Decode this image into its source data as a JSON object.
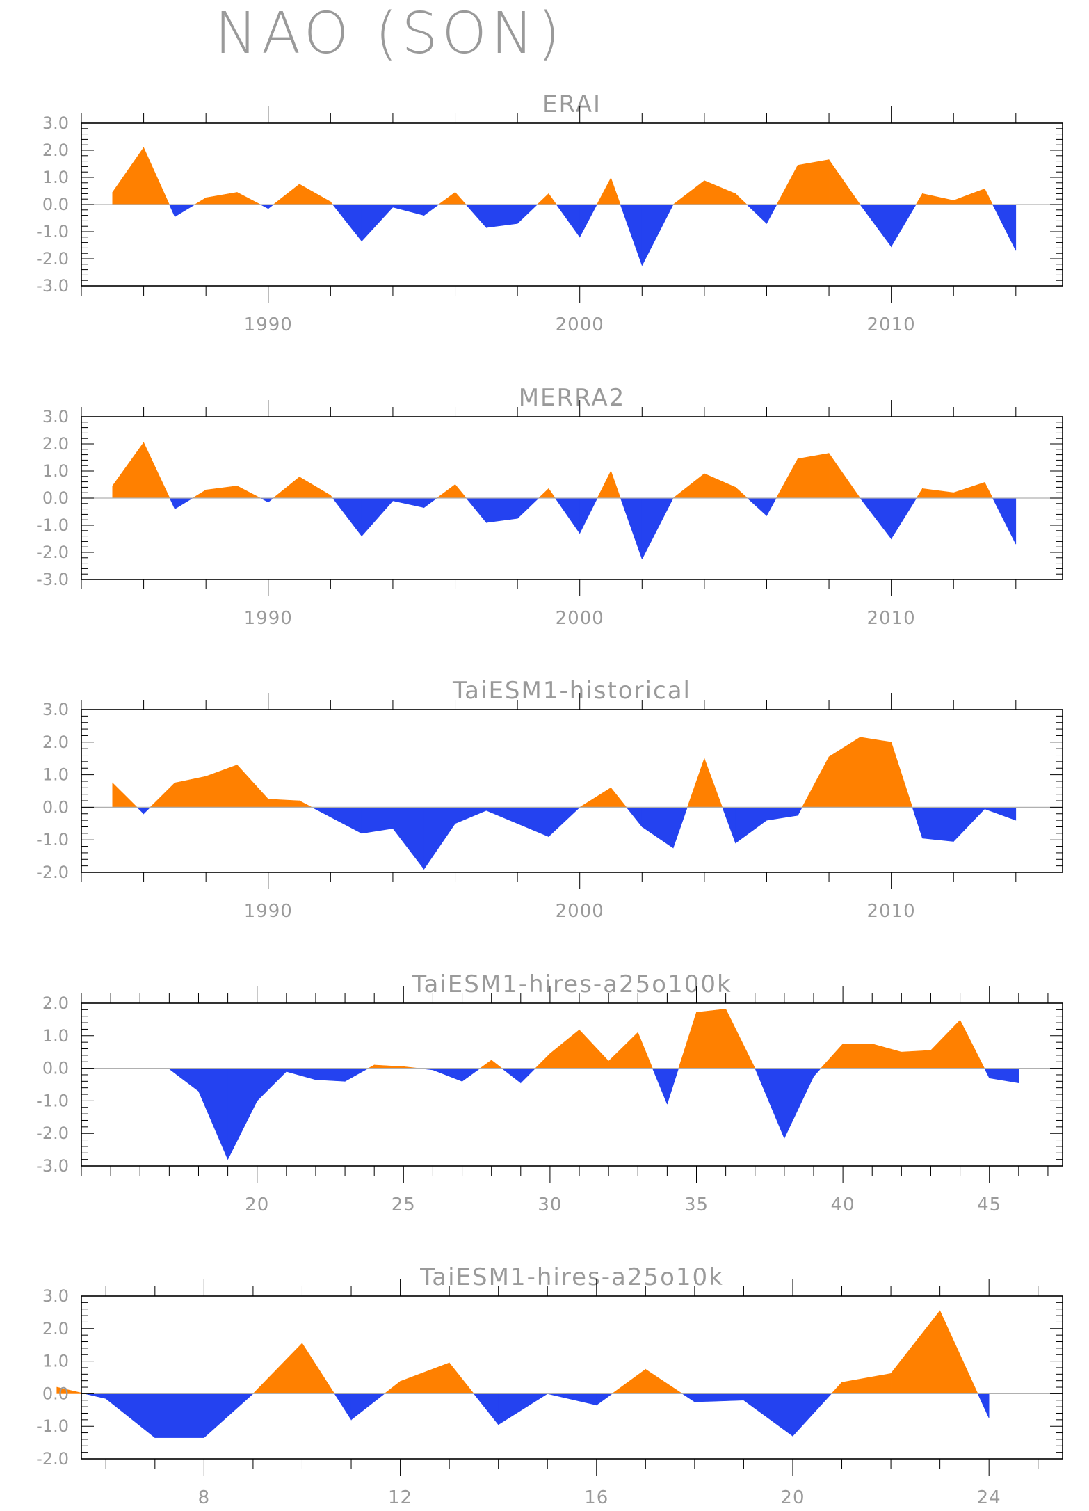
{
  "title": "NAO (SON)",
  "colors": {
    "positive": "#ff8000",
    "negative": "#2442f0",
    "axis": "#000000",
    "text": "#9a9a9a"
  },
  "chart_data": [
    {
      "type": "area",
      "title": "ERAI",
      "xlim": [
        1984,
        2015.5
      ],
      "ylim": [
        -3,
        3
      ],
      "yticks": [
        3,
        2,
        1,
        0,
        -1,
        -2,
        -3
      ],
      "ytick_labels": [
        "3.0",
        "2.0",
        "1.0",
        "0.0",
        "-1.0",
        "-2.0",
        "-3.0"
      ],
      "xticks": [
        1990,
        2000,
        2010
      ],
      "xtick_labels": [
        "1990",
        "2000",
        "2010"
      ],
      "x": [
        1985,
        1986,
        1987,
        1988,
        1989,
        1990,
        1991,
        1992,
        1993,
        1994,
        1995,
        1996,
        1997,
        1998,
        1999,
        2000,
        2001,
        2002,
        2003,
        2004,
        2005,
        2006,
        2007,
        2008,
        2009,
        2010,
        2011,
        2012,
        2013,
        2014
      ],
      "values": [
        0.45,
        2.1,
        -0.45,
        0.25,
        0.45,
        -0.15,
        0.75,
        0.1,
        -1.35,
        -0.1,
        -0.4,
        0.45,
        -0.85,
        -0.7,
        0.4,
        -1.2,
        0.98,
        -2.25,
        0.0,
        0.88,
        0.4,
        -0.7,
        1.45,
        1.65,
        0.0,
        -1.55,
        0.4,
        0.15,
        0.58,
        -1.7
      ]
    },
    {
      "type": "area",
      "title": "MERRA2",
      "xlim": [
        1984,
        2015.5
      ],
      "ylim": [
        -3,
        3
      ],
      "yticks": [
        3,
        2,
        1,
        0,
        -1,
        -2,
        -3
      ],
      "ytick_labels": [
        "3.0",
        "2.0",
        "1.0",
        "0.0",
        "-1.0",
        "-2.0",
        "-3.0"
      ],
      "xticks": [
        1990,
        2000,
        2010
      ],
      "xtick_labels": [
        "1990",
        "2000",
        "2010"
      ],
      "x": [
        1985,
        1986,
        1987,
        1988,
        1989,
        1990,
        1991,
        1992,
        1993,
        1994,
        1995,
        1996,
        1997,
        1998,
        1999,
        2000,
        2001,
        2002,
        2003,
        2004,
        2005,
        2006,
        2007,
        2008,
        2009,
        2010,
        2011,
        2012,
        2013,
        2014
      ],
      "values": [
        0.45,
        2.05,
        -0.4,
        0.3,
        0.45,
        -0.15,
        0.78,
        0.1,
        -1.4,
        -0.1,
        -0.35,
        0.5,
        -0.9,
        -0.75,
        0.35,
        -1.3,
        1.0,
        -2.25,
        0.0,
        0.9,
        0.4,
        -0.65,
        1.45,
        1.65,
        0.0,
        -1.5,
        0.35,
        0.2,
        0.58,
        -1.7
      ]
    },
    {
      "type": "area",
      "title": "TaiESM1-historical",
      "xlim": [
        1984,
        2015.5
      ],
      "ylim": [
        -2,
        3
      ],
      "yticks": [
        3,
        2,
        1,
        0,
        -1,
        -2
      ],
      "ytick_labels": [
        "3.0",
        "2.0",
        "1.0",
        "0.0",
        "-1.0",
        "-2.0"
      ],
      "xticks": [
        1990,
        2000,
        2010
      ],
      "xtick_labels": [
        "1990",
        "2000",
        "2010"
      ],
      "x": [
        1985,
        1986,
        1987,
        1988,
        1989,
        1990,
        1991,
        1992,
        1993,
        1994,
        1995,
        1996,
        1997,
        1998,
        1999,
        2000,
        2001,
        2002,
        2003,
        2004,
        2005,
        2006,
        2007,
        2008,
        2009,
        2010,
        2011,
        2012,
        2013,
        2014
      ],
      "values": [
        0.75,
        -0.2,
        0.75,
        0.95,
        1.3,
        0.25,
        0.2,
        -0.3,
        -0.8,
        -0.65,
        -1.9,
        -0.5,
        -0.1,
        -0.5,
        -0.9,
        0.0,
        0.6,
        -0.6,
        -1.25,
        1.5,
        -1.1,
        -0.4,
        -0.25,
        1.55,
        2.15,
        2.0,
        -0.95,
        -1.05,
        -0.05,
        -0.4
      ]
    },
    {
      "type": "area",
      "title": "TaiESM1-hires-a25o100k",
      "xlim": [
        14,
        47.5
      ],
      "ylim": [
        -3,
        2
      ],
      "yticks": [
        2,
        1,
        0,
        -1,
        -2,
        -3
      ],
      "ytick_labels": [
        "2.0",
        "1.0",
        "0.0",
        "-1.0",
        "-2.0",
        "-3.0"
      ],
      "xticks": [
        20,
        25,
        30,
        35,
        40,
        45
      ],
      "xtick_labels": [
        "20",
        "25",
        "30",
        "35",
        "40",
        "45"
      ],
      "x": [
        17,
        18,
        19,
        20,
        21,
        22,
        23,
        24,
        25,
        26,
        27,
        28,
        29,
        30,
        31,
        32,
        33,
        34,
        35,
        36,
        37,
        38,
        39,
        40,
        41,
        42,
        43,
        44,
        45,
        46
      ],
      "values": [
        -0.02,
        -0.7,
        -2.8,
        -1.0,
        -0.1,
        -0.35,
        -0.4,
        0.1,
        0.05,
        -0.05,
        -0.4,
        0.25,
        -0.45,
        0.45,
        1.18,
        0.22,
        1.1,
        -1.1,
        1.72,
        1.82,
        0.0,
        -2.15,
        -0.25,
        0.75,
        0.75,
        0.5,
        0.55,
        1.48,
        -0.3,
        -0.45
      ]
    },
    {
      "type": "area",
      "title": "TaiESM1-hires-a25o10k",
      "xlim": [
        5.5,
        25.5
      ],
      "ylim": [
        -2,
        3
      ],
      "yticks": [
        3,
        2,
        1,
        0,
        -1,
        -2
      ],
      "ytick_labels": [
        "3.0",
        "2.0",
        "1.0",
        "0.0",
        "-1.0",
        "-2.0"
      ],
      "xticks": [
        8,
        12,
        16,
        20,
        24
      ],
      "xtick_labels": [
        "8",
        "12",
        "16",
        "20",
        "24"
      ],
      "x": [
        5,
        6,
        7,
        8,
        9,
        10,
        11,
        12,
        13,
        14,
        15,
        16,
        17,
        18,
        19,
        20,
        21,
        22,
        23,
        24
      ],
      "values": [
        0.2,
        -0.15,
        -1.35,
        -1.35,
        0.0,
        1.55,
        -0.8,
        0.38,
        0.95,
        -0.95,
        0.0,
        -0.35,
        0.75,
        -0.25,
        -0.2,
        -1.3,
        0.35,
        0.62,
        2.55,
        -0.75
      ]
    }
  ]
}
